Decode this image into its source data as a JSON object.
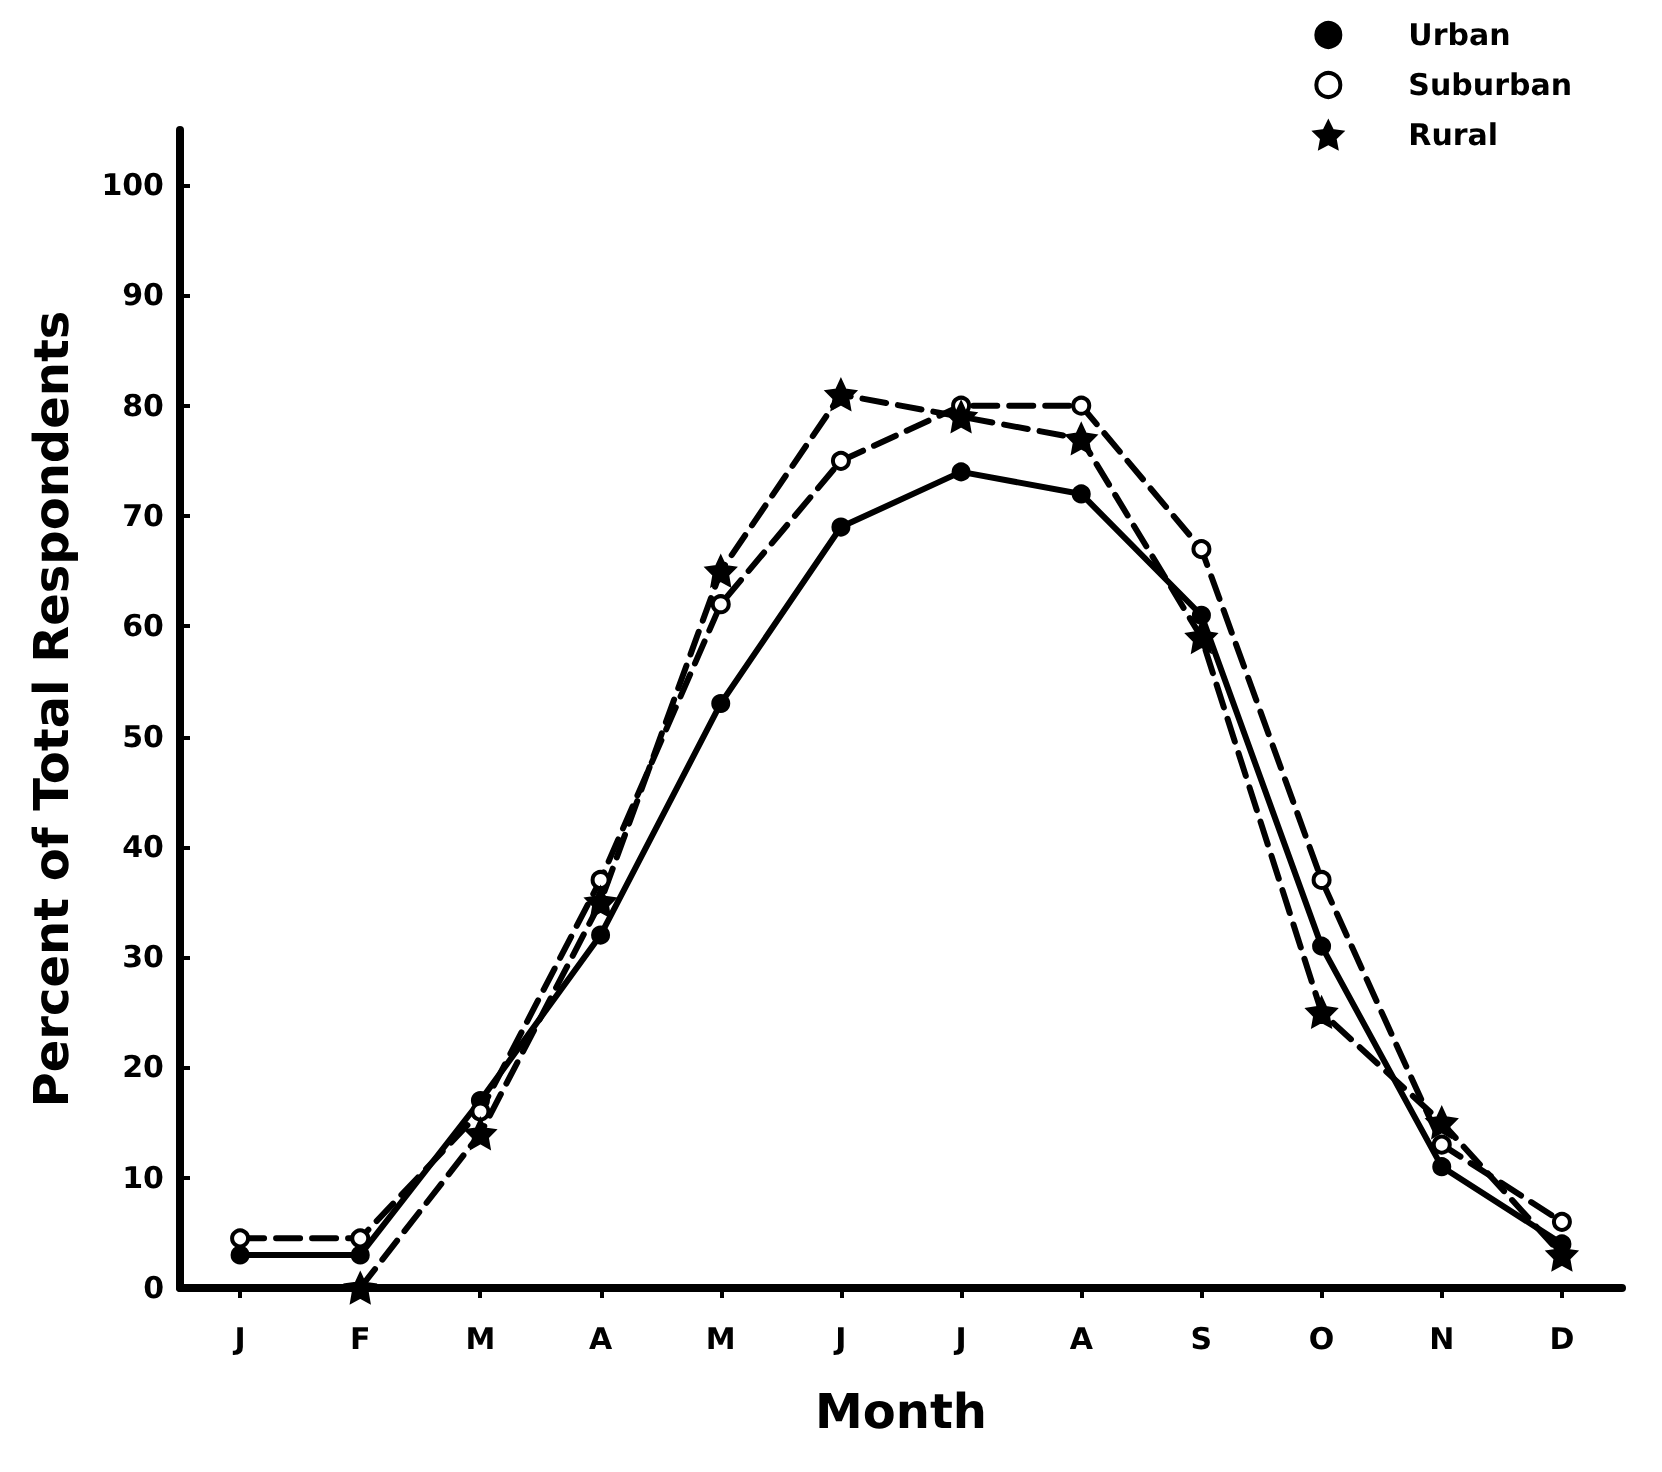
{
  "chart_data": {
    "type": "line",
    "xlabel": "Month",
    "ylabel": "Percent of Total Respondents",
    "categories": [
      "J",
      "F",
      "M",
      "A",
      "M",
      "J",
      "J",
      "A",
      "S",
      "O",
      "N",
      "D"
    ],
    "series": [
      {
        "name": "Urban",
        "color": "#000000",
        "marker": "circle",
        "line_style": "solid",
        "values": [
          3,
          3,
          17,
          32,
          53,
          69,
          74,
          72,
          61,
          31,
          11,
          4
        ]
      },
      {
        "name": "Suburban",
        "color": "#000000",
        "marker": "circle-open",
        "line_style": "dashed",
        "values": [
          4.5,
          4.5,
          16,
          37,
          62,
          75,
          80,
          80,
          67,
          37,
          13,
          6
        ]
      },
      {
        "name": "Rural",
        "color": "#000000",
        "marker": "star",
        "line_style": "dashed",
        "values": [
          null,
          0,
          14,
          35,
          65,
          81,
          79,
          77,
          59,
          25,
          15,
          3
        ]
      }
    ],
    "ylim": [
      0,
      105
    ],
    "yticks": [
      0,
      10,
      20,
      30,
      40,
      50,
      60,
      70,
      80,
      90,
      100
    ],
    "grid": false,
    "legend": "top right"
  }
}
